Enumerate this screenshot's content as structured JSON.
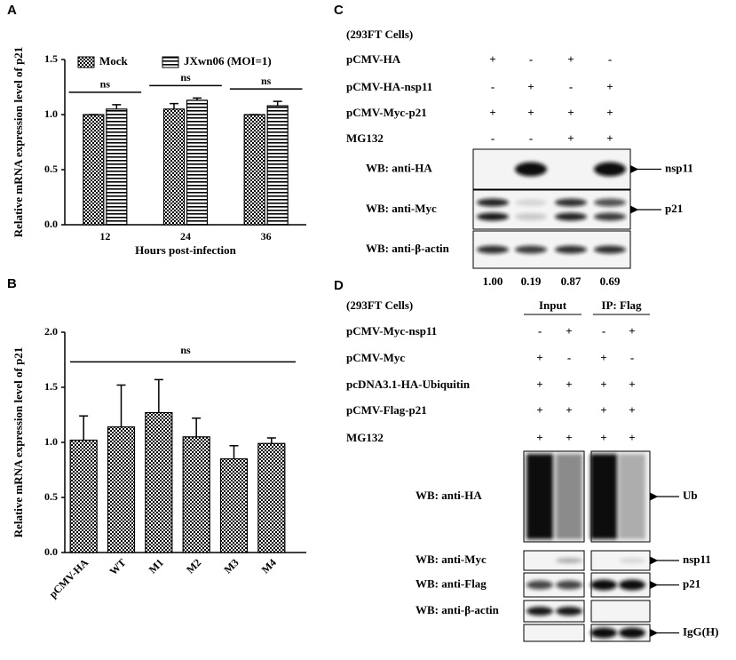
{
  "chart_data": [
    {
      "type": "bar",
      "panel": "A",
      "ylabel": "Relative mRNA expression level of p21",
      "xlabel": "Hours post-infection",
      "categories": [
        "12",
        "24",
        "36"
      ],
      "series": [
        {
          "name": "Mock",
          "color": "#000000",
          "pattern": "checker",
          "values": [
            1.0,
            1.05,
            1.0
          ],
          "errors": [
            0,
            0.05,
            0
          ]
        },
        {
          "name": "JXwn06 (MOI=1)",
          "color": "#000000",
          "pattern": "stripes",
          "values": [
            1.05,
            1.13,
            1.08
          ],
          "errors": [
            0.04,
            0.02,
            0.04
          ]
        }
      ],
      "ylim": [
        0,
        1.5
      ],
      "yticks": [
        {
          "value": 0,
          "label": "0.0"
        },
        {
          "value": 0.5,
          "label": "0.5"
        },
        {
          "value": 1,
          "label": "1.0"
        },
        {
          "value": 1.5,
          "label": "1.5"
        }
      ],
      "annotations": [
        "ns",
        "ns",
        "ns"
      ]
    },
    {
      "type": "bar",
      "panel": "B",
      "ylabel": "Relative mRNA expression level of p21",
      "categories": [
        "pCMV-HA",
        "WT",
        "M1",
        "M2",
        "M3",
        "M4"
      ],
      "values": [
        1.02,
        1.14,
        1.27,
        1.05,
        0.85,
        0.99
      ],
      "errors": [
        0.22,
        0.38,
        0.3,
        0.17,
        0.12,
        0.05
      ],
      "color": "#000000",
      "pattern": "checker",
      "ylim": [
        0,
        2
      ],
      "yticks": [
        {
          "value": 0,
          "label": "0.0"
        },
        {
          "value": 0.5,
          "label": "0.5"
        },
        {
          "value": 1,
          "label": "1.0"
        },
        {
          "value": 1.5,
          "label": "1.5"
        },
        {
          "value": 2,
          "label": "2.0"
        }
      ],
      "annotations": [
        "ns"
      ]
    }
  ],
  "blot_c": {
    "panel": "C",
    "cells": "(293FT Cells)",
    "rows": [
      {
        "label": "pCMV-HA",
        "signs": [
          "+",
          "-",
          "+",
          "-"
        ]
      },
      {
        "label": "pCMV-HA-nsp11",
        "signs": [
          "-",
          "+",
          "-",
          "+"
        ]
      },
      {
        "label": "pCMV-Myc-p21",
        "signs": [
          "+",
          "+",
          "+",
          "+"
        ]
      },
      {
        "label": "MG132",
        "signs": [
          "-",
          "-",
          "+",
          "+"
        ]
      }
    ],
    "blots": [
      {
        "label": "WB: anti-HA",
        "arrow": "nsp11"
      },
      {
        "label": "WB: anti-Myc",
        "arrow": "p21"
      },
      {
        "label": "WB: anti-β-actin"
      }
    ],
    "quantification": [
      "1.00",
      "0.19",
      "0.87",
      "0.69"
    ]
  },
  "blot_d": {
    "panel": "D",
    "cells": "(293FT Cells)",
    "groups": [
      "Input",
      "IP: Flag"
    ],
    "rows": [
      {
        "label": "pCMV-Myc-nsp11",
        "signs": [
          "-",
          "+",
          "-",
          "+"
        ]
      },
      {
        "label": "pCMV-Myc",
        "signs": [
          "+",
          "-",
          "+",
          "-"
        ]
      },
      {
        "label": "pcDNA3.1-HA-Ubiquitin",
        "signs": [
          "+",
          "+",
          "+",
          "+"
        ]
      },
      {
        "label": "pCMV-Flag-p21",
        "signs": [
          "+",
          "+",
          "+",
          "+"
        ]
      },
      {
        "label": "MG132",
        "signs": [
          "+",
          "+",
          "+",
          "+"
        ]
      }
    ],
    "blots": [
      {
        "label": "WB: anti-HA",
        "arrow": "Ub"
      },
      {
        "label": "WB: anti-Myc",
        "arrow": "nsp11"
      },
      {
        "label": "WB: anti-Flag",
        "arrow": "p21"
      },
      {
        "label": "WB: anti-β-actin"
      },
      {
        "arrow": "IgG(H)"
      }
    ]
  }
}
